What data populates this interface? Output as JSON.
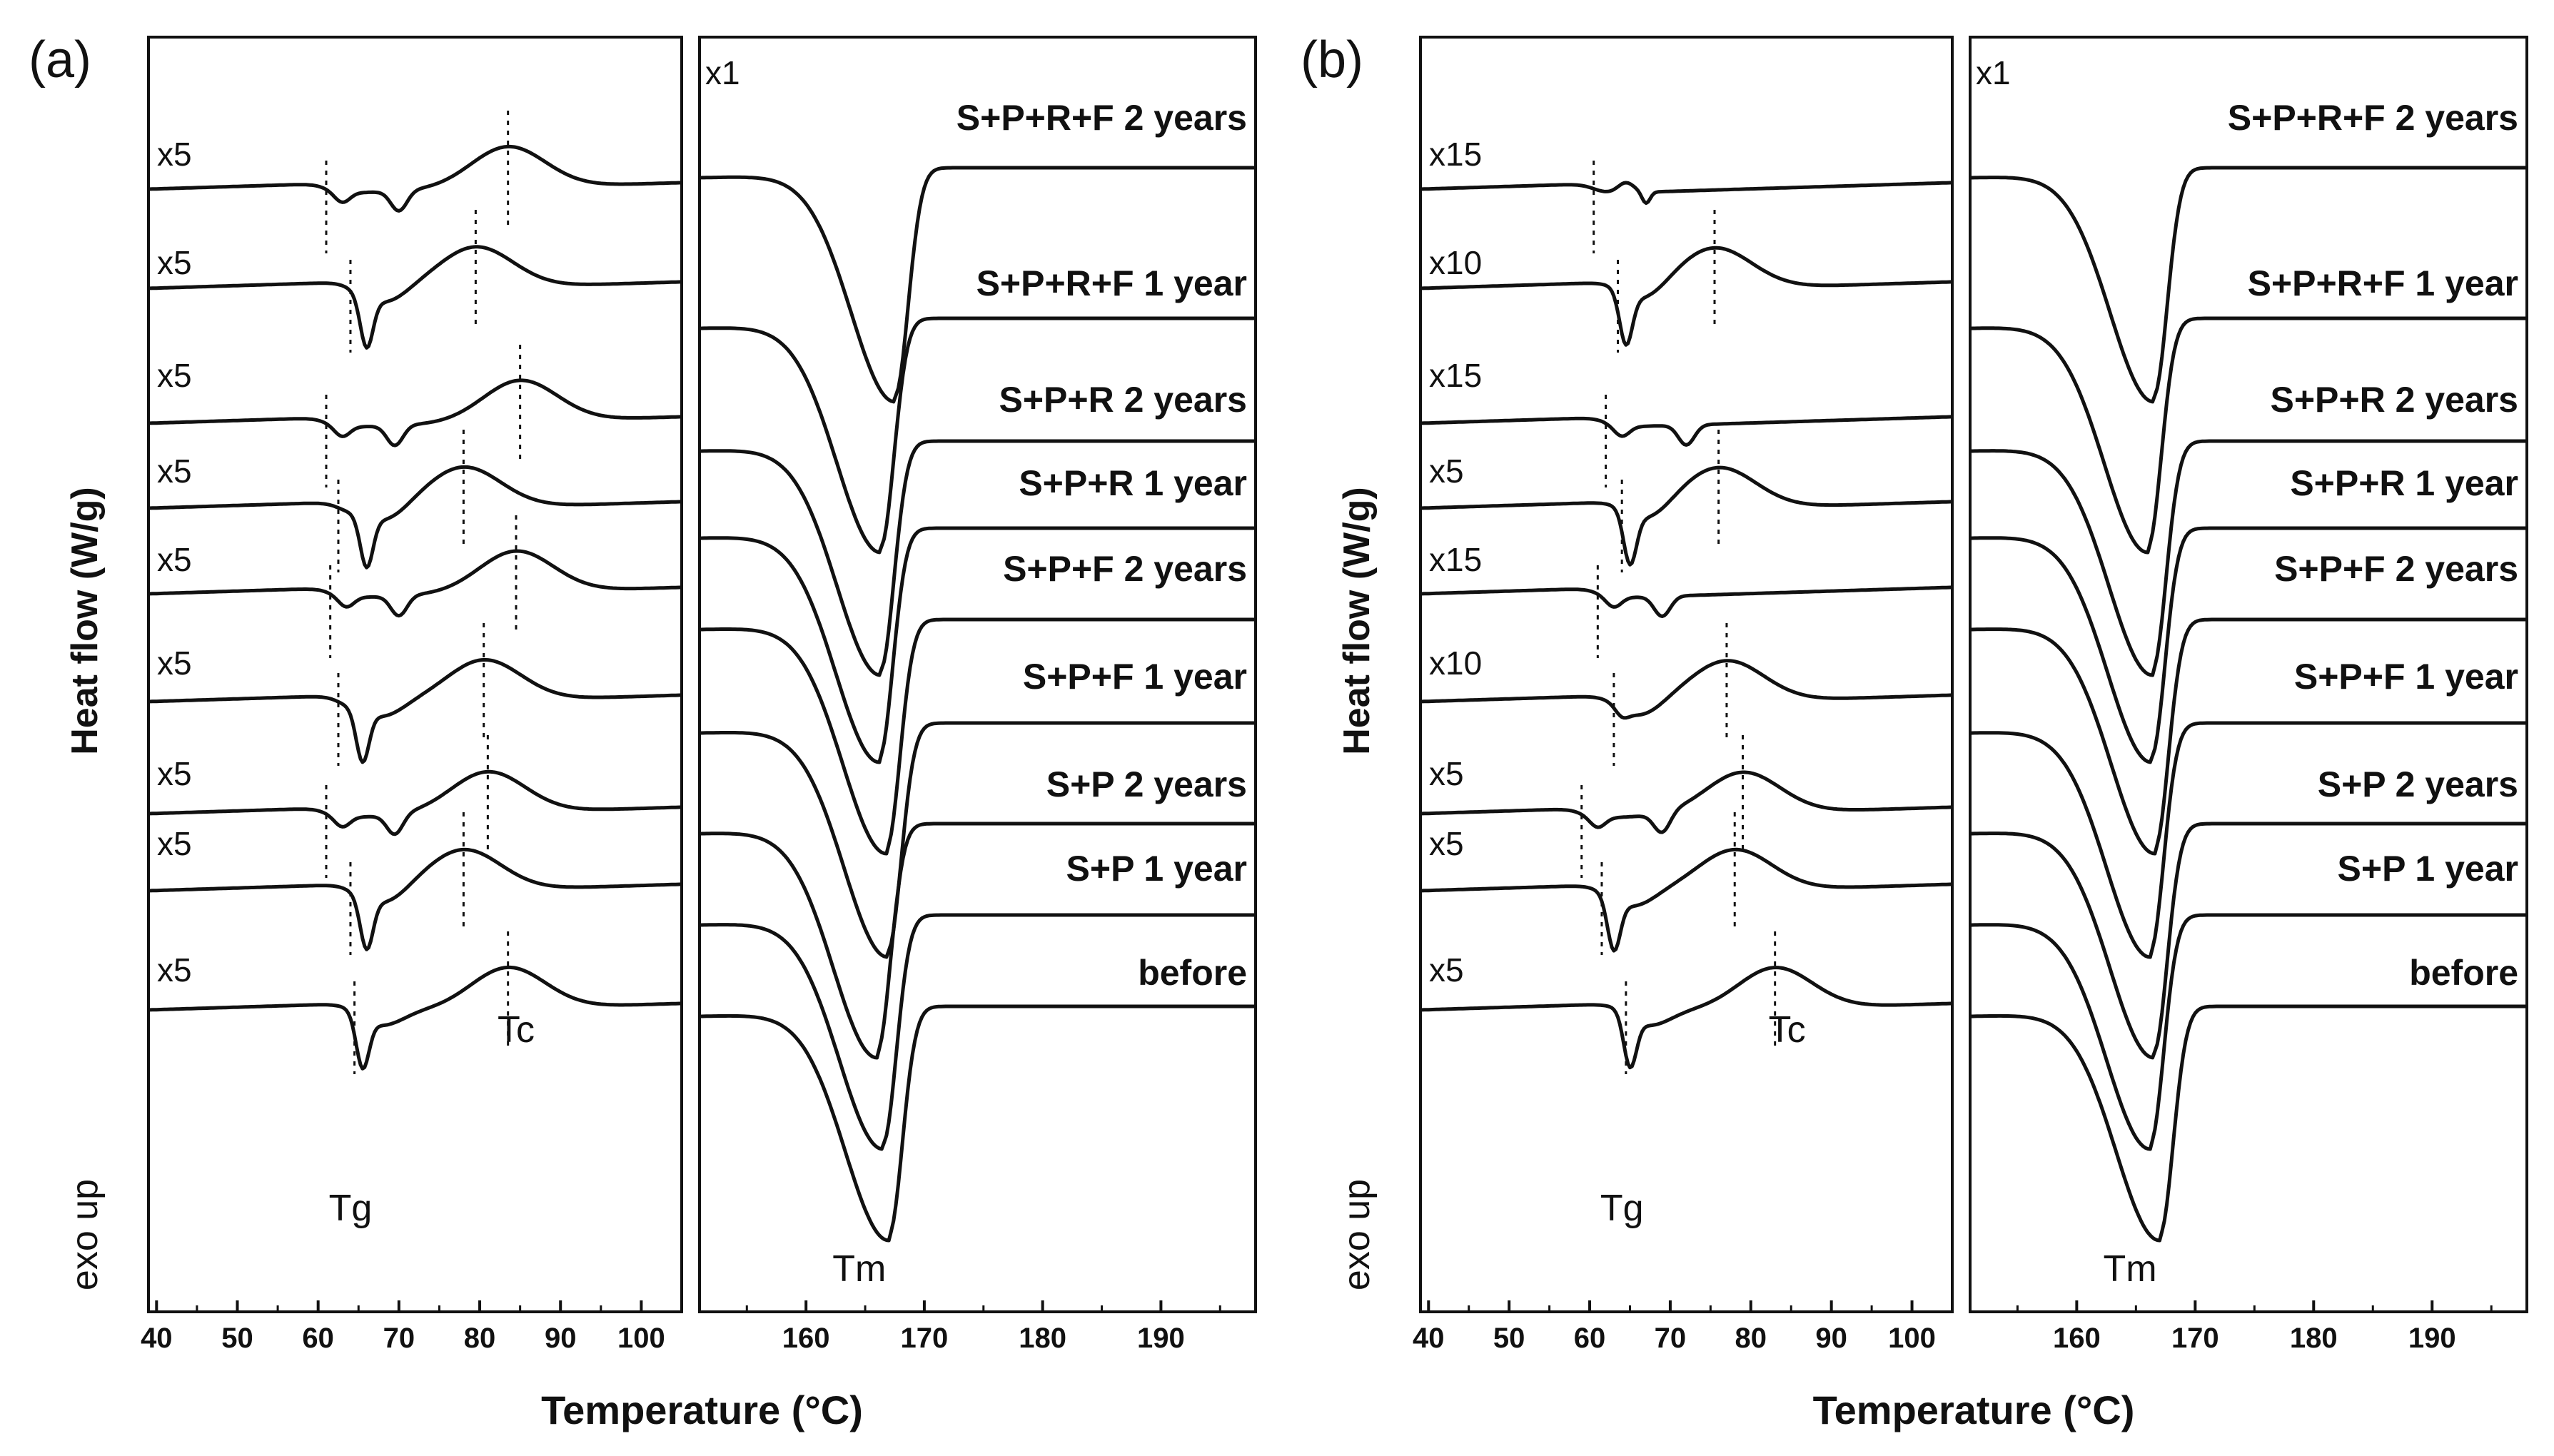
{
  "chart_data": [
    {
      "type": "line",
      "panel_label": "(a)",
      "ylabel": "Heat flow (W/g)",
      "exo_label": "exo up",
      "xlabel": "Temperature (°C)",
      "left_plot": {
        "x_ticks": [
          40,
          50,
          60,
          70,
          80,
          90,
          100
        ],
        "xlim": [
          39,
          105
        ],
        "annotations": {
          "tg": "Tg",
          "tc": "Tc"
        },
        "series": [
          {
            "name": "S+P+R+F 2 years",
            "scale": "x5",
            "tg": 61,
            "dip": 70,
            "tc": 83.5,
            "kind": "double"
          },
          {
            "name": "S+P+R+F 1 year",
            "scale": "x5",
            "tg": 64,
            "dip": 66,
            "tc": 79.5,
            "kind": "single"
          },
          {
            "name": "S+P+R 2 years",
            "scale": "x5",
            "tg": 61,
            "dip": 69.5,
            "tc": 85,
            "kind": "double"
          },
          {
            "name": "S+P+R 1 year",
            "scale": "x5",
            "tg": 62.5,
            "dip": 66,
            "tc": 78,
            "kind": "single"
          },
          {
            "name": "S+P+F 2 years",
            "scale": "x5",
            "tg": 61.5,
            "dip": 70,
            "tc": 84.5,
            "kind": "double"
          },
          {
            "name": "S+P+F 1 year",
            "scale": "x5",
            "tg": 62.5,
            "dip": 65.5,
            "tc": 80.5,
            "kind": "single"
          },
          {
            "name": "S+P 2 years",
            "scale": "x5",
            "tg": 61,
            "dip": 69.5,
            "tc": 81,
            "kind": "double"
          },
          {
            "name": "S+P 1 year",
            "scale": "x5",
            "tg": 64,
            "dip": 66,
            "tc": 78,
            "kind": "single"
          },
          {
            "name": "before",
            "scale": "x5",
            "tg": 64.5,
            "dip": 65.5,
            "tc": 83.5,
            "kind": "single"
          }
        ]
      },
      "right_plot": {
        "scale": "x1",
        "x_ticks": [
          160,
          170,
          180,
          190
        ],
        "xlim": [
          151,
          198
        ],
        "annotation": "Tm",
        "series": [
          {
            "name": "S+P+R+F 2 years",
            "tm": 167.5
          },
          {
            "name": "S+P+R+F 1 year",
            "tm": 166.3
          },
          {
            "name": "S+P+R 2 years",
            "tm": 166.3
          },
          {
            "name": "S+P+R 1 year",
            "tm": 166.2
          },
          {
            "name": "S+P+F 2 years",
            "tm": 166.8
          },
          {
            "name": "S+P+F 1 year",
            "tm": 166.9
          },
          {
            "name": "S+P 2 years",
            "tm": 166.0
          },
          {
            "name": "S+P 1 year",
            "tm": 166.5
          },
          {
            "name": "before",
            "tm": 167.0
          }
        ]
      }
    },
    {
      "type": "line",
      "panel_label": "(b)",
      "ylabel": "Heat flow (W/g)",
      "exo_label": "exo up",
      "xlabel": "Temperature (°C)",
      "left_plot": {
        "x_ticks": [
          40,
          50,
          60,
          70,
          80,
          90,
          100
        ],
        "xlim": [
          39,
          105
        ],
        "annotations": {
          "tg": "Tg",
          "tc": "Tc"
        },
        "series": [
          {
            "name": "S+P+R+F 2 years",
            "scale": "x15",
            "tg": 60.5,
            "dip": 67,
            "tc": null,
            "kind": "wiggle"
          },
          {
            "name": "S+P+R+F 1 year",
            "scale": "x10",
            "tg": 63.5,
            "dip": 64.5,
            "tc": 75.5,
            "kind": "single"
          },
          {
            "name": "S+P+R 2 years",
            "scale": "x15",
            "tg": 62,
            "dip": 72,
            "tc": null,
            "kind": "double"
          },
          {
            "name": "S+P+R 1 year",
            "scale": "x5",
            "tg": 64,
            "dip": 65,
            "tc": 76,
            "kind": "single"
          },
          {
            "name": "S+P+F 2 years",
            "scale": "x15",
            "tg": 61,
            "dip": 69,
            "tc": null,
            "kind": "double"
          },
          {
            "name": "S+P+F 1 year",
            "scale": "x10",
            "tg": 63,
            "dip": 64,
            "tc": 77,
            "kind": "step"
          },
          {
            "name": "S+P 2 years",
            "scale": "x5",
            "tg": 59,
            "dip": 69,
            "tc": 79,
            "kind": "double"
          },
          {
            "name": "S+P 1 year",
            "scale": "x5",
            "tg": 61.5,
            "dip": 63,
            "tc": 78,
            "kind": "single"
          },
          {
            "name": "before",
            "scale": "x5",
            "tg": 64.5,
            "dip": 65,
            "tc": 83,
            "kind": "single"
          }
        ]
      },
      "right_plot": {
        "scale": "x1",
        "x_ticks": [
          160,
          170,
          180,
          190
        ],
        "xlim": [
          151,
          198
        ],
        "annotation": "Tm",
        "series": [
          {
            "name": "S+P+R+F 2 years",
            "tm": 166.5
          },
          {
            "name": "S+P+R+F 1 year",
            "tm": 166.0
          },
          {
            "name": "S+P+R 2 years",
            "tm": 166.4
          },
          {
            "name": "S+P+R 1 year",
            "tm": 166.3
          },
          {
            "name": "S+P+F 2 years",
            "tm": 166.6
          },
          {
            "name": "S+P+F 1 year",
            "tm": 166.2
          },
          {
            "name": "S+P 2 years",
            "tm": 166.5
          },
          {
            "name": "S+P 1 year",
            "tm": 166.2
          },
          {
            "name": "before",
            "tm": 167.0
          }
        ]
      }
    }
  ]
}
